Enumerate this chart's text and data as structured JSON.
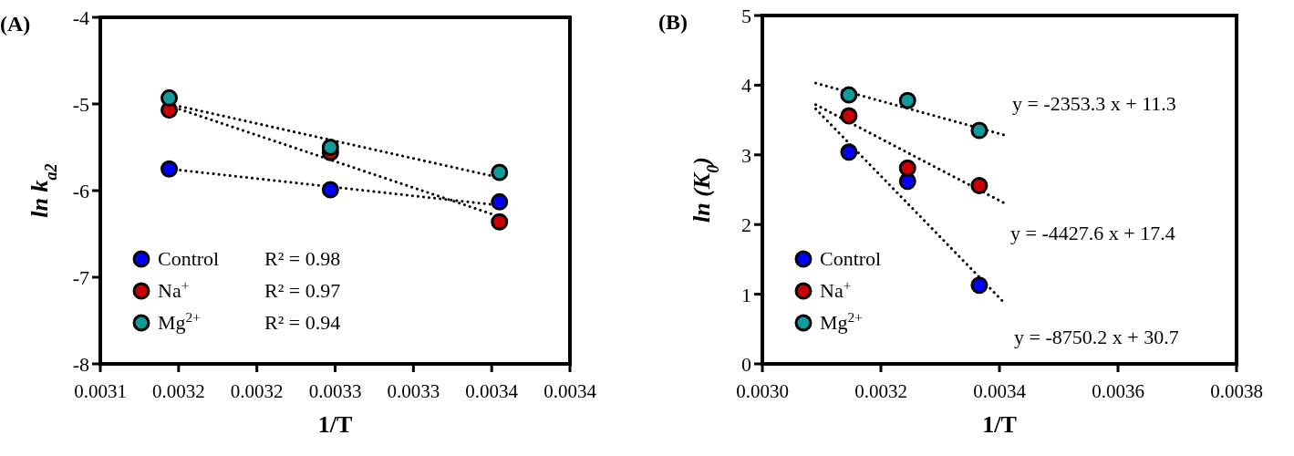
{
  "chart_data": [
    {
      "type": "scatter",
      "title": "(A)",
      "xlabel": "1/T",
      "ylabel": "ln k$_{a2}$",
      "xlim": [
        0.0031,
        0.0034
      ],
      "ylim": [
        -8,
        -4
      ],
      "xticks": [
        {
          "value": 0.0031,
          "label": "0.0031"
        },
        {
          "value": 0.00315,
          "label": "0.0032"
        },
        {
          "value": 0.0032,
          "label": "0.0032"
        },
        {
          "value": 0.00325,
          "label": "0.0033"
        },
        {
          "value": 0.0033,
          "label": "0.0033"
        },
        {
          "value": 0.00335,
          "label": "0.0034"
        },
        {
          "value": 0.0034,
          "label": "0.0034"
        }
      ],
      "yticks": [
        -8,
        -7,
        -6,
        -5,
        -4
      ],
      "grid": false,
      "legend": "bottom left",
      "marker": "circle",
      "annotations": [
        "R² = 0.98",
        "R² = 0.97",
        "R² = 0.94"
      ],
      "series": [
        {
          "name": "Control",
          "color": "#0000ff",
          "x": [
            0.003144,
            0.003247,
            0.003355
          ],
          "values": [
            -5.75,
            -5.99,
            -6.13
          ]
        },
        {
          "name": "Na$^{+}$",
          "color": "#cc0000",
          "x": [
            0.003144,
            0.003247,
            0.003355
          ],
          "values": [
            -5.07,
            -5.56,
            -6.36
          ]
        },
        {
          "name": "Mg$^{2+}$",
          "color": "#139a9a",
          "x": [
            0.003144,
            0.003247,
            0.003355
          ],
          "values": [
            -4.93,
            -5.5,
            -5.79
          ]
        },
        {
          "type": "line",
          "color": "#000000",
          "marker": "none",
          "line_style": "dotted",
          "x": [
            0.003144,
            0.003355
          ],
          "values": [
            -5.75,
            -6.17
          ]
        },
        {
          "type": "line",
          "color": "#000000",
          "marker": "none",
          "line_style": "dotted",
          "x": [
            0.003144,
            0.003355
          ],
          "values": [
            -5.02,
            -6.3
          ]
        },
        {
          "type": "line",
          "color": "#000000",
          "marker": "none",
          "line_style": "dotted",
          "x": [
            0.003144,
            0.003355
          ],
          "values": [
            -5.0,
            -5.85
          ]
        }
      ]
    },
    {
      "type": "scatter",
      "title": "(B)",
      "xlabel": "1/T",
      "ylabel": "ln (K$_{0}$)",
      "xlim": [
        0.003,
        0.0038
      ],
      "ylim": [
        0,
        5
      ],
      "xticks": [
        {
          "value": 0.003,
          "label": "0.0030"
        },
        {
          "value": 0.0032,
          "label": "0.0032"
        },
        {
          "value": 0.0034,
          "label": "0.0034"
        },
        {
          "value": 0.0036,
          "label": "0.0036"
        },
        {
          "value": 0.0038,
          "label": "0.0038"
        }
      ],
      "yticks": [
        0,
        1,
        2,
        3,
        4,
        5
      ],
      "grid": false,
      "legend": "bottom left",
      "marker": "circle",
      "annotations": [
        "y = -2353.3 x + 11.3",
        "y = -4427.6 x + 17.4",
        "y = -8750.2 x + 30.7"
      ],
      "series": [
        {
          "name": "Control",
          "color": "#0000ff",
          "x": [
            0.003146,
            0.003245,
            0.003366
          ],
          "values": [
            3.04,
            2.62,
            1.13
          ]
        },
        {
          "name": "Na$^{+}$",
          "color": "#cc0000",
          "x": [
            0.003146,
            0.003245,
            0.003366
          ],
          "values": [
            3.56,
            2.81,
            2.56
          ]
        },
        {
          "name": "Mg$^{2+}$",
          "color": "#139a9a",
          "x": [
            0.003146,
            0.003245,
            0.003366
          ],
          "values": [
            3.86,
            3.78,
            3.35
          ]
        },
        {
          "type": "line",
          "color": "#000000",
          "marker": "none",
          "line_style": "dotted",
          "x": [
            0.00309,
            0.00341
          ],
          "values": [
            4.03,
            3.28
          ]
        },
        {
          "type": "line",
          "color": "#000000",
          "marker": "none",
          "line_style": "dotted",
          "x": [
            0.00309,
            0.00341
          ],
          "values": [
            3.72,
            2.3
          ]
        },
        {
          "type": "line",
          "color": "#000000",
          "marker": "none",
          "line_style": "dotted",
          "x": [
            0.00309,
            0.00341
          ],
          "values": [
            3.66,
            0.86
          ]
        }
      ]
    }
  ]
}
